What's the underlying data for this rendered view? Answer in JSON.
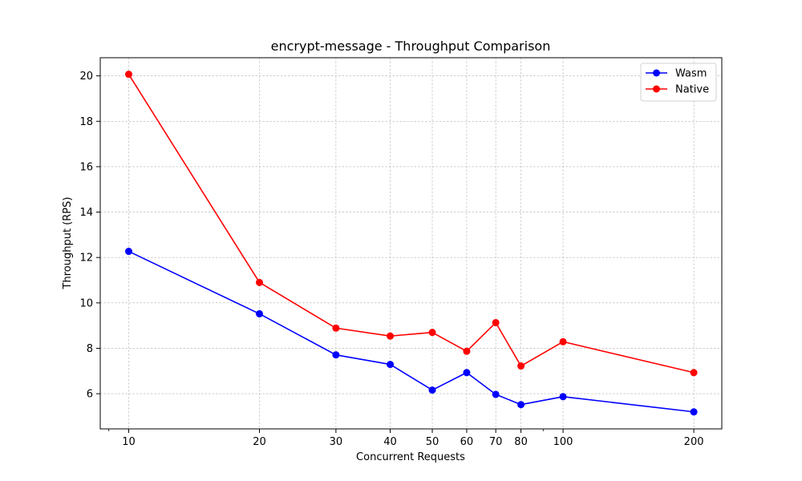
{
  "chart_data": {
    "type": "line",
    "title": "encrypt-message - Throughput Comparison",
    "xlabel": "Concurrent Requests",
    "ylabel": "Throughput (RPS)",
    "x_scale": "log",
    "x": [
      10,
      20,
      30,
      40,
      50,
      60,
      70,
      80,
      100,
      200
    ],
    "x_tick_labels": [
      "10",
      "20",
      "30",
      "40",
      "50",
      "60",
      "70",
      "80",
      "100",
      "200"
    ],
    "xlim": [
      8.6,
      232
    ],
    "ylim": [
      4.45,
      20.8
    ],
    "y_ticks": [
      6,
      8,
      10,
      12,
      14,
      16,
      18,
      20
    ],
    "y_tick_labels": [
      "6",
      "8",
      "10",
      "12",
      "14",
      "16",
      "18",
      "20"
    ],
    "grid": true,
    "legend_position": "top-right",
    "series": [
      {
        "name": "Wasm",
        "color": "#0000ff",
        "values": [
          12.27,
          9.52,
          7.71,
          7.29,
          6.16,
          6.93,
          5.97,
          5.52,
          5.87,
          5.2
        ]
      },
      {
        "name": "Native",
        "color": "#ff0000",
        "values": [
          20.07,
          10.9,
          8.89,
          8.54,
          8.7,
          7.87,
          9.13,
          7.22,
          8.29,
          6.93
        ]
      }
    ]
  }
}
